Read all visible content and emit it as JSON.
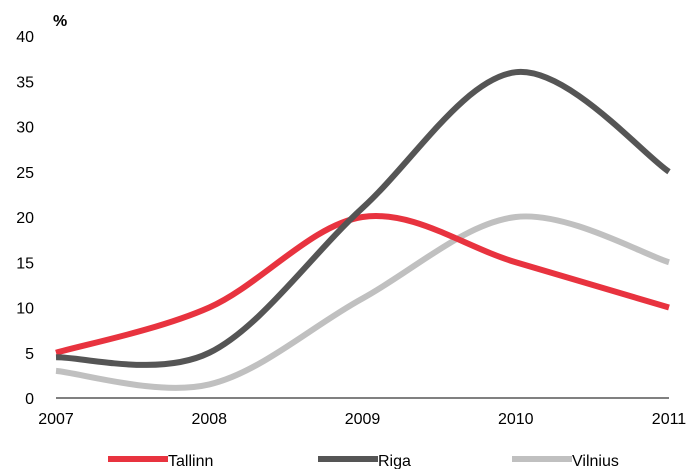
{
  "chart_data": {
    "type": "line",
    "title": "",
    "xlabel": "",
    "ylabel": "%",
    "x": [
      "2007",
      "2008",
      "2009",
      "2010",
      "2011"
    ],
    "yticks": [
      0,
      5,
      10,
      15,
      20,
      25,
      30,
      35,
      40
    ],
    "ylim": [
      0,
      40
    ],
    "grid": false,
    "legend_position": "bottom",
    "series": [
      {
        "name": "Tallinn",
        "color": "#e8333f",
        "values": [
          5,
          10,
          20,
          15,
          10
        ]
      },
      {
        "name": "Riga",
        "color": "#555555",
        "values": [
          4.5,
          5,
          21,
          36,
          25
        ]
      },
      {
        "name": "Vilnius",
        "color": "#c0c0c0",
        "values": [
          3,
          1.5,
          11,
          20,
          15
        ]
      }
    ]
  }
}
